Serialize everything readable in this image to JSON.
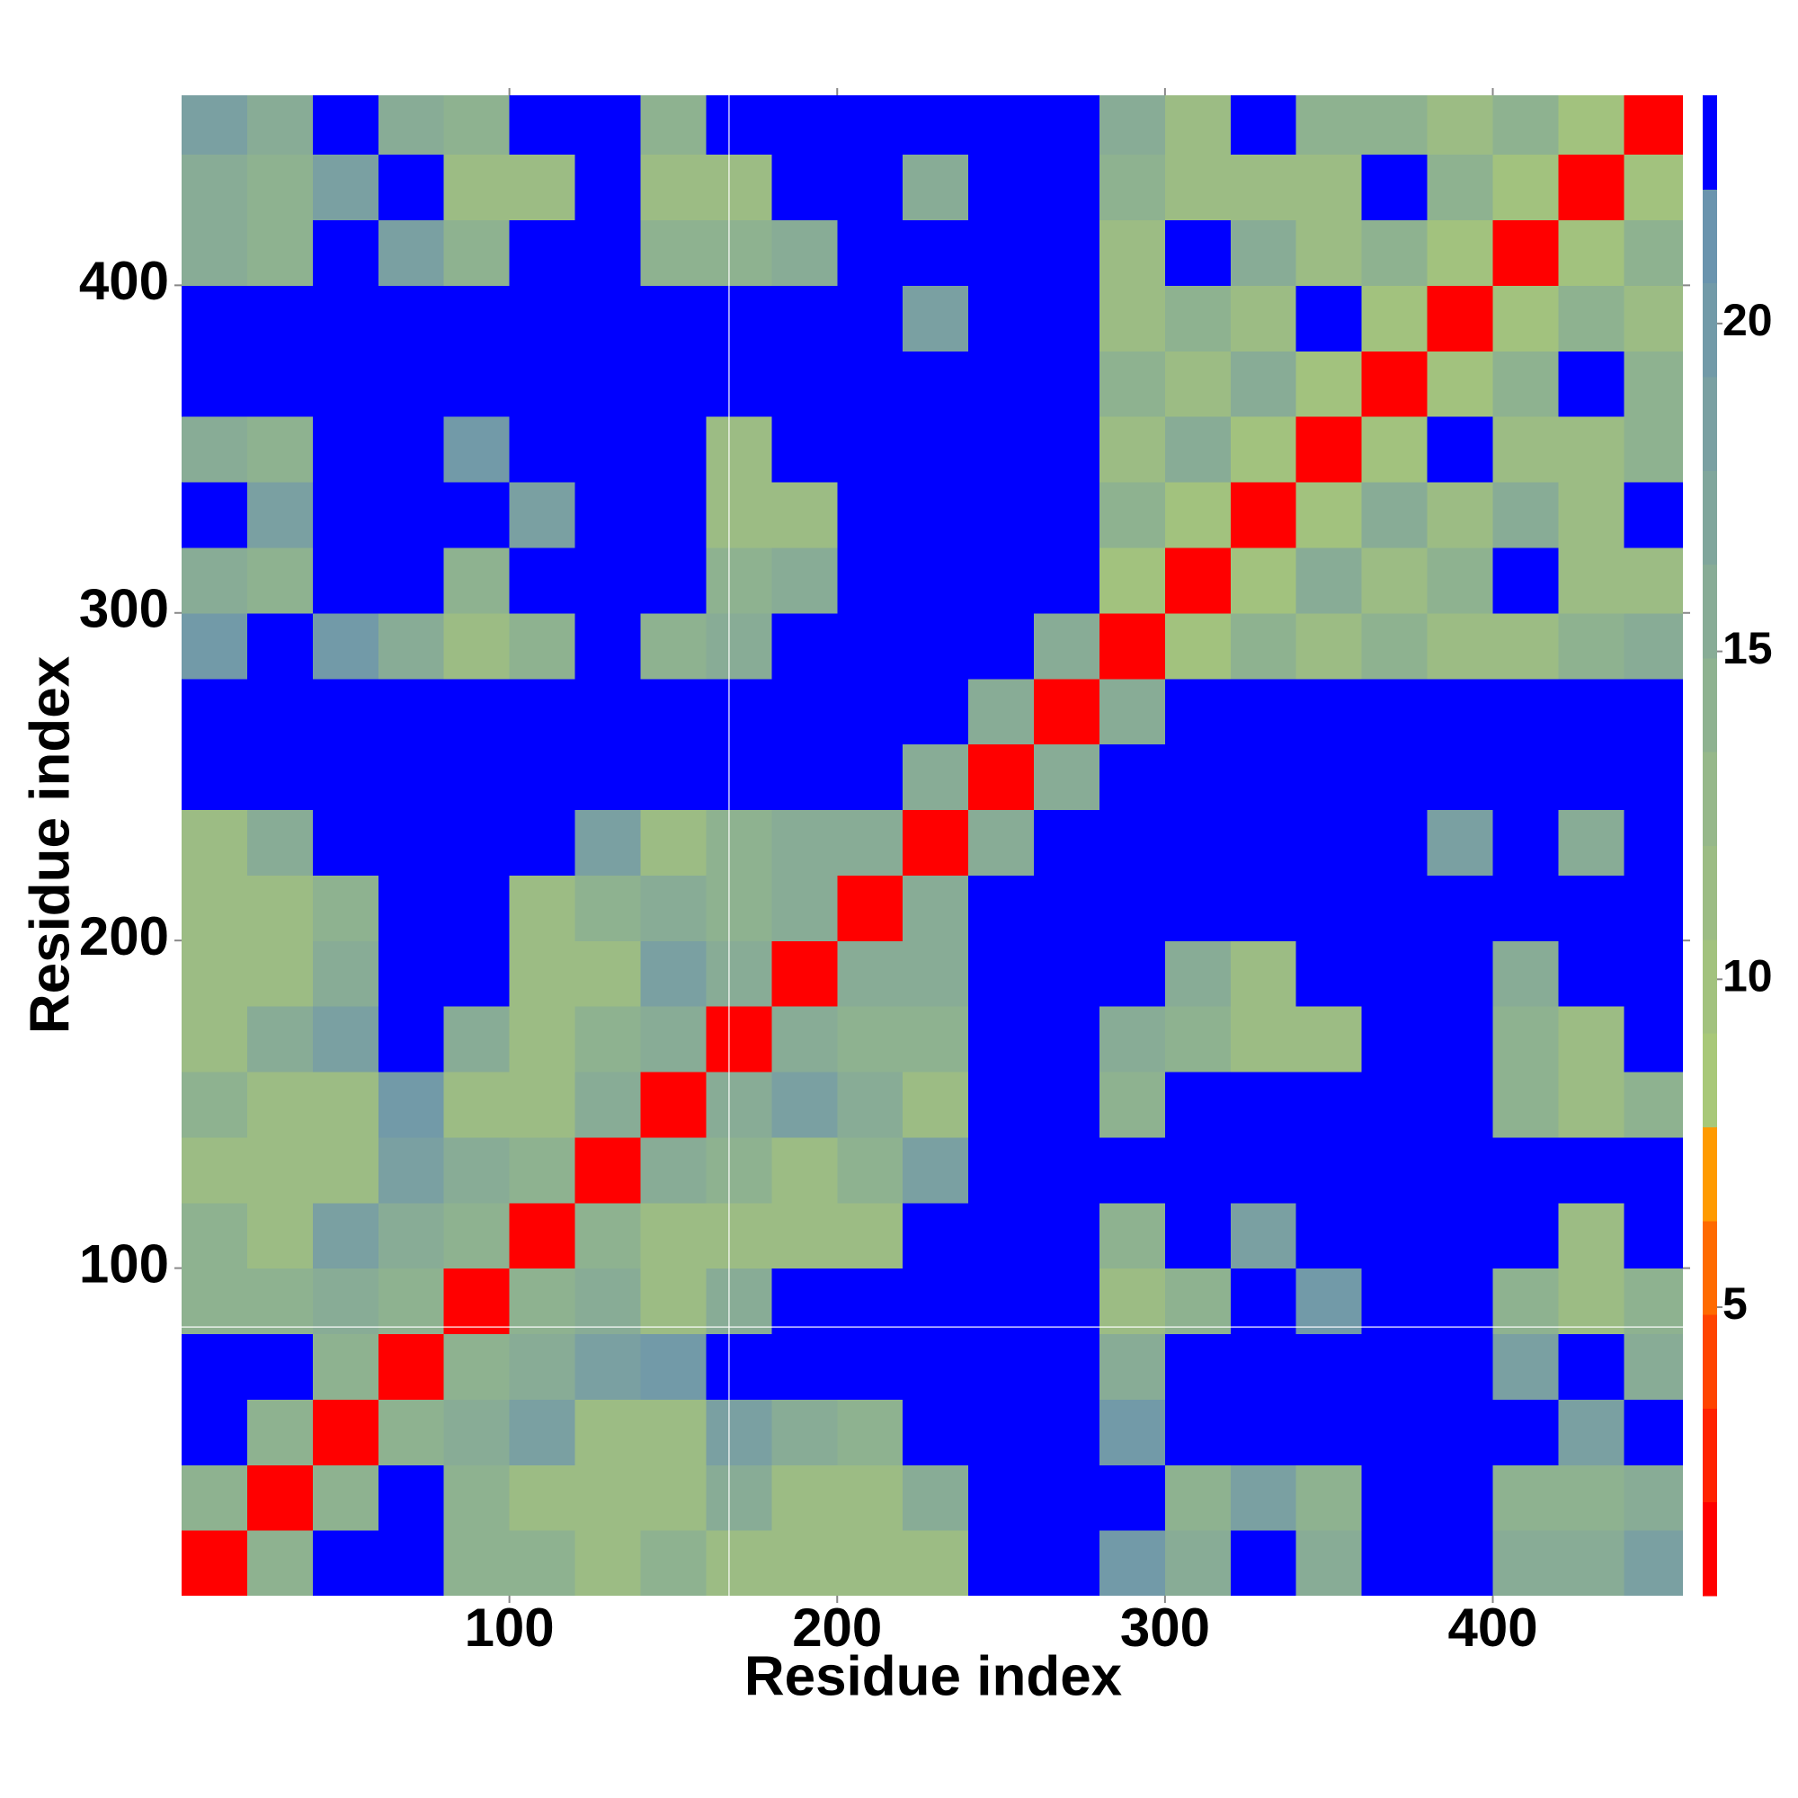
{
  "chart_data": {
    "type": "heatmap",
    "xlabel": "Residue index",
    "ylabel": "Residue index",
    "x_bins": [
      0,
      20,
      40,
      60,
      80,
      100,
      120,
      140,
      160,
      180,
      200,
      220,
      240,
      260,
      280,
      300,
      320,
      340,
      360,
      380,
      400,
      420,
      440,
      460
    ],
    "y_bins": [
      0,
      20,
      40,
      60,
      80,
      100,
      120,
      140,
      160,
      180,
      200,
      220,
      240,
      260,
      280,
      300,
      320,
      340,
      360,
      380,
      400,
      420,
      440,
      460
    ],
    "z": [
      [
        2,
        14,
        23,
        23,
        14,
        14,
        12,
        14,
        12,
        12,
        12,
        12,
        23,
        23,
        20,
        16,
        23,
        16,
        23,
        23,
        16,
        16,
        18
      ],
      [
        14,
        2,
        14,
        23,
        14,
        12,
        12,
        12,
        16,
        12,
        12,
        16,
        23,
        23,
        23,
        14,
        18,
        14,
        23,
        23,
        14,
        14,
        16
      ],
      [
        23,
        14,
        2,
        14,
        16,
        18,
        12,
        12,
        18,
        16,
        14,
        23,
        23,
        23,
        20,
        23,
        23,
        23,
        23,
        23,
        23,
        18,
        23
      ],
      [
        23,
        23,
        14,
        2,
        14,
        16,
        18,
        20,
        23,
        23,
        23,
        23,
        23,
        23,
        16,
        23,
        23,
        23,
        23,
        23,
        18,
        23,
        16
      ],
      [
        14,
        14,
        16,
        14,
        2,
        14,
        16,
        12,
        16,
        23,
        23,
        23,
        23,
        23,
        12,
        14,
        23,
        20,
        23,
        23,
        14,
        12,
        14
      ],
      [
        14,
        12,
        18,
        16,
        14,
        2,
        14,
        12,
        12,
        12,
        12,
        23,
        23,
        23,
        14,
        23,
        18,
        23,
        23,
        23,
        23,
        12,
        23
      ],
      [
        12,
        12,
        12,
        18,
        16,
        14,
        2,
        16,
        14,
        12,
        14,
        18,
        23,
        23,
        23,
        23,
        23,
        23,
        23,
        23,
        23,
        23,
        23
      ],
      [
        14,
        12,
        12,
        20,
        12,
        12,
        16,
        2,
        16,
        18,
        16,
        12,
        23,
        23,
        14,
        23,
        23,
        23,
        23,
        23,
        14,
        12,
        14
      ],
      [
        12,
        16,
        18,
        23,
        16,
        12,
        14,
        16,
        2,
        16,
        14,
        14,
        23,
        23,
        16,
        14,
        12,
        12,
        23,
        23,
        14,
        12,
        23
      ],
      [
        12,
        12,
        16,
        23,
        23,
        12,
        12,
        18,
        16,
        2,
        16,
        16,
        23,
        23,
        23,
        16,
        12,
        23,
        23,
        23,
        16,
        23,
        23
      ],
      [
        12,
        12,
        14,
        23,
        23,
        12,
        14,
        16,
        14,
        16,
        2,
        16,
        23,
        23,
        23,
        23,
        23,
        23,
        23,
        23,
        23,
        23,
        23
      ],
      [
        12,
        16,
        23,
        23,
        23,
        23,
        18,
        12,
        14,
        16,
        16,
        2,
        16,
        23,
        23,
        23,
        23,
        23,
        23,
        18,
        23,
        16,
        23
      ],
      [
        23,
        23,
        23,
        23,
        23,
        23,
        23,
        23,
        23,
        23,
        23,
        16,
        2,
        16,
        23,
        23,
        23,
        23,
        23,
        23,
        23,
        23,
        23
      ],
      [
        23,
        23,
        23,
        23,
        23,
        23,
        23,
        23,
        23,
        23,
        23,
        23,
        16,
        2,
        16,
        23,
        23,
        23,
        23,
        23,
        23,
        23,
        23
      ],
      [
        20,
        23,
        20,
        16,
        12,
        14,
        23,
        14,
        16,
        23,
        23,
        23,
        23,
        16,
        2,
        10,
        14,
        12,
        14,
        12,
        12,
        14,
        16
      ],
      [
        16,
        14,
        23,
        23,
        14,
        23,
        23,
        23,
        14,
        16,
        23,
        23,
        23,
        23,
        10,
        2,
        10,
        16,
        12,
        14,
        23,
        12,
        12
      ],
      [
        23,
        18,
        23,
        23,
        23,
        18,
        23,
        23,
        12,
        12,
        23,
        23,
        23,
        23,
        14,
        10,
        2,
        10,
        16,
        12,
        16,
        12,
        23
      ],
      [
        16,
        14,
        23,
        23,
        20,
        23,
        23,
        23,
        12,
        23,
        23,
        23,
        23,
        23,
        12,
        16,
        10,
        2,
        10,
        23,
        12,
        12,
        14
      ],
      [
        23,
        23,
        23,
        23,
        23,
        23,
        23,
        23,
        23,
        23,
        23,
        23,
        23,
        23,
        14,
        12,
        16,
        10,
        2,
        10,
        14,
        23,
        14
      ],
      [
        23,
        23,
        23,
        23,
        23,
        23,
        23,
        23,
        23,
        23,
        23,
        18,
        23,
        23,
        12,
        14,
        12,
        23,
        10,
        2,
        10,
        14,
        12
      ],
      [
        16,
        14,
        23,
        18,
        14,
        23,
        23,
        14,
        14,
        16,
        23,
        23,
        23,
        23,
        12,
        23,
        16,
        12,
        14,
        10,
        2,
        10,
        14
      ],
      [
        16,
        14,
        18,
        23,
        12,
        12,
        23,
        12,
        12,
        23,
        23,
        16,
        23,
        23,
        14,
        12,
        12,
        12,
        23,
        14,
        10,
        2,
        10
      ],
      [
        18,
        16,
        23,
        16,
        14,
        23,
        23,
        14,
        23,
        23,
        23,
        23,
        23,
        23,
        16,
        12,
        23,
        14,
        14,
        12,
        14,
        10,
        2
      ]
    ],
    "xlim": [
      0,
      458
    ],
    "ylim": [
      0,
      458
    ],
    "xticks": [
      100,
      200,
      300,
      400
    ],
    "yticks": [
      100,
      200,
      300,
      400
    ],
    "colorbar": {
      "bounds": [
        0.6,
        2.03,
        3.46,
        4.89,
        6.32,
        7.75,
        9.18,
        10.61,
        12.04,
        13.47,
        14.9,
        16.33,
        17.76,
        19.19,
        20.62,
        22.05,
        23.48
      ],
      "colors": [
        "#ff0000",
        "#ff2200",
        "#ff4400",
        "#ff6a00",
        "#ff9a00",
        "#a8c878",
        "#a2c27e",
        "#9cbc84",
        "#96b88a",
        "#8eb290",
        "#88ac96",
        "#80a69c",
        "#7aa0a2",
        "#729aa8",
        "#6a94ae",
        "#0000ff"
      ],
      "ticks": [
        5,
        10,
        15,
        20
      ]
    },
    "crosshair": {
      "x": 167,
      "y": 82,
      "color": "#ffffff"
    }
  }
}
